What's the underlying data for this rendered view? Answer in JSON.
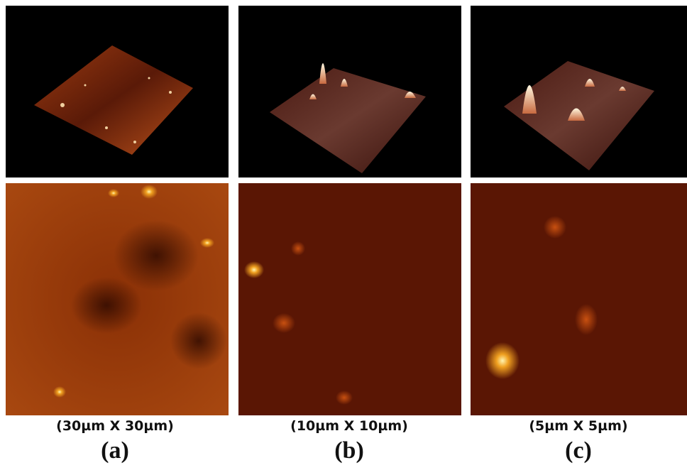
{
  "panels": [
    {
      "caption": "(30µm X 30µm)",
      "label": "(a)"
    },
    {
      "caption": "(10µm X 10µm)",
      "label": "(b)"
    },
    {
      "caption": "(5µm X 5µm)",
      "label": "(c)"
    }
  ]
}
